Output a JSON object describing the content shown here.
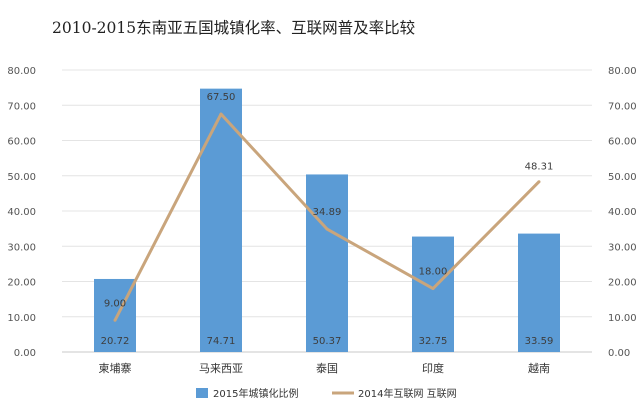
{
  "chart_data": {
    "type": "bar",
    "title": "2010-2015东南亚五国城镇化率、互联网普及率比较",
    "categories": [
      "柬埔寨",
      "马来西亚",
      "泰国",
      "印度",
      "越南"
    ],
    "y_ticks": [
      "80.00",
      "70.00",
      "60.00",
      "50.00",
      "40.00",
      "30.00",
      "20.00",
      "10.00",
      "0.00"
    ],
    "ylim": [
      0,
      80
    ],
    "grid": true,
    "legend_position": "bottom",
    "series": [
      {
        "name": "2015年城镇化比例",
        "type": "bar",
        "color": "#5b9bd5",
        "values": [
          20.72,
          74.71,
          50.37,
          32.75,
          33.59
        ],
        "labels": [
          "20.72",
          "74.71",
          "50.37",
          "32.75",
          "33.59"
        ]
      },
      {
        "name": "2014年互联网  互联网",
        "type": "line",
        "color": "#c9a57c",
        "values": [
          9.0,
          67.5,
          34.89,
          18.0,
          48.31
        ],
        "labels": [
          "9.00",
          "67.50",
          "34.89",
          "18.00",
          "48.31"
        ]
      }
    ]
  }
}
